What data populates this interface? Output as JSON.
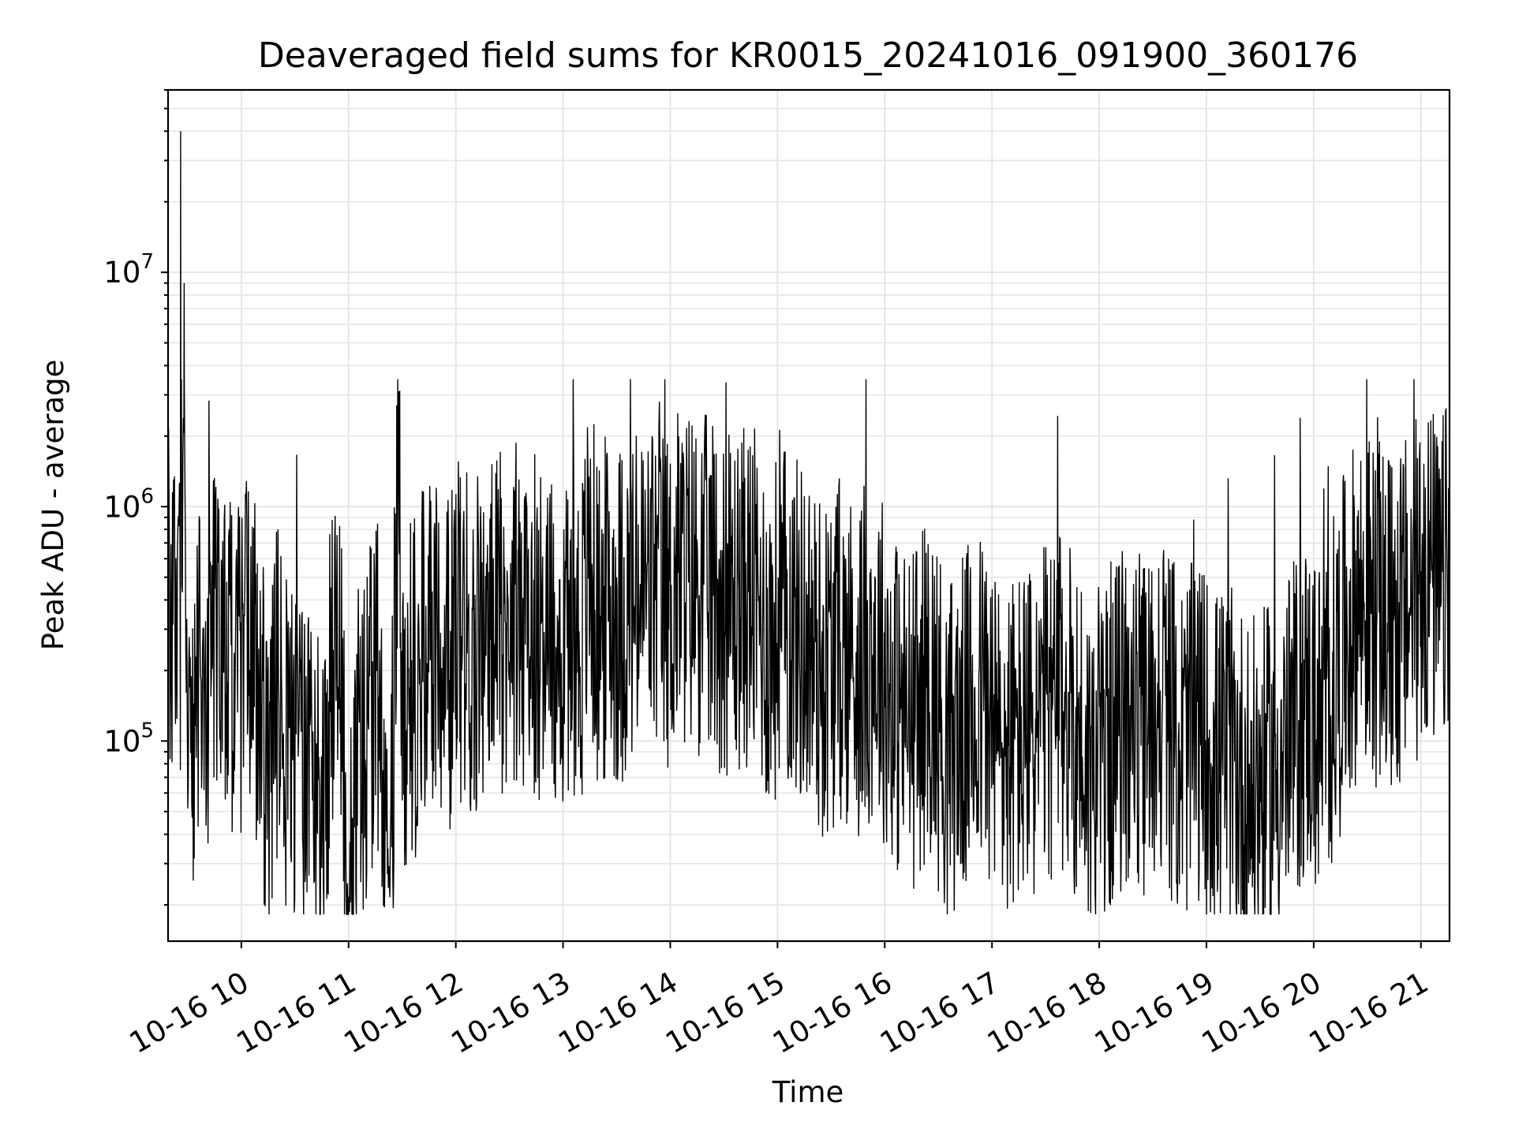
{
  "chart_data": {
    "type": "line",
    "title": "Deaveraged field sums for KR0015_20241016_091900_360176",
    "xlabel": "Time",
    "ylabel": "Peak ADU - average",
    "yscale": "log",
    "ylim": [
      14000,
      60000000
    ],
    "xlim": [
      "2024-10-16 09:19:00",
      "2024-10-16 21:16:00"
    ],
    "grid": true,
    "line_color": "#000000",
    "grid_color": "#e6e6e6",
    "x_ticks": [
      {
        "time": "2024-10-16 10:00",
        "label": "10-16 10"
      },
      {
        "time": "2024-10-16 11:00",
        "label": "10-16 11"
      },
      {
        "time": "2024-10-16 12:00",
        "label": "10-16 12"
      },
      {
        "time": "2024-10-16 13:00",
        "label": "10-16 13"
      },
      {
        "time": "2024-10-16 14:00",
        "label": "10-16 14"
      },
      {
        "time": "2024-10-16 15:00",
        "label": "10-16 15"
      },
      {
        "time": "2024-10-16 16:00",
        "label": "10-16 16"
      },
      {
        "time": "2024-10-16 17:00",
        "label": "10-16 17"
      },
      {
        "time": "2024-10-16 18:00",
        "label": "10-16 18"
      },
      {
        "time": "2024-10-16 19:00",
        "label": "10-16 19"
      },
      {
        "time": "2024-10-16 20:00",
        "label": "10-16 20"
      },
      {
        "time": "2024-10-16 21:00",
        "label": "10-16 21"
      }
    ],
    "y_ticks": [
      {
        "value": 100000,
        "base": "10",
        "exp": "5"
      },
      {
        "value": 1000000,
        "base": "10",
        "exp": "6"
      },
      {
        "value": 10000000,
        "base": "10",
        "exp": "7"
      }
    ],
    "series": [
      {
        "x": [
          "2024-10-16 09:19",
          "2024-10-16 09:21",
          "2024-10-16 09:24",
          "2024-10-16 09:25",
          "2024-10-16 09:26",
          "2024-10-16 09:26",
          "2024-10-16 09:27",
          "2024-10-16 09:28",
          "2024-10-16 09:30",
          "2024-10-16 09:33",
          "2024-10-16 09:36",
          "2024-10-16 09:40",
          "2024-10-16 09:45",
          "2024-10-16 09:50",
          "2024-10-16 09:55",
          "2024-10-16 10:00",
          "2024-10-16 10:05",
          "2024-10-16 10:10",
          "2024-10-16 10:15",
          "2024-10-16 10:20",
          "2024-10-16 10:25",
          "2024-10-16 10:30",
          "2024-10-16 10:35",
          "2024-10-16 10:40",
          "2024-10-16 10:45",
          "2024-10-16 10:50",
          "2024-10-16 10:55",
          "2024-10-16 11:00",
          "2024-10-16 11:05",
          "2024-10-16 11:10",
          "2024-10-16 11:15",
          "2024-10-16 11:20",
          "2024-10-16 11:25",
          "2024-10-16 11:28",
          "2024-10-16 11:30",
          "2024-10-16 11:35",
          "2024-10-16 11:40",
          "2024-10-16 11:45",
          "2024-10-16 11:50",
          "2024-10-16 11:55",
          "2024-10-16 12:00",
          "2024-10-16 12:10",
          "2024-10-16 12:20",
          "2024-10-16 12:30",
          "2024-10-16 12:40",
          "2024-10-16 12:50",
          "2024-10-16 13:00",
          "2024-10-16 13:05",
          "2024-10-16 13:10",
          "2024-10-16 13:15",
          "2024-10-16 13:20",
          "2024-10-16 13:25",
          "2024-10-16 13:30",
          "2024-10-16 13:40",
          "2024-10-16 13:50",
          "2024-10-16 14:00",
          "2024-10-16 14:05",
          "2024-10-16 14:15",
          "2024-10-16 14:25",
          "2024-10-16 14:35",
          "2024-10-16 14:45",
          "2024-10-16 14:55",
          "2024-10-16 15:05",
          "2024-10-16 15:15",
          "2024-10-16 15:25",
          "2024-10-16 15:35",
          "2024-10-16 15:45",
          "2024-10-16 15:55",
          "2024-10-16 16:05",
          "2024-10-16 16:15",
          "2024-10-16 16:25",
          "2024-10-16 16:35",
          "2024-10-16 16:45",
          "2024-10-16 16:55",
          "2024-10-16 17:05",
          "2024-10-16 17:15",
          "2024-10-16 17:25",
          "2024-10-16 17:35",
          "2024-10-16 17:45",
          "2024-10-16 17:55",
          "2024-10-16 18:05",
          "2024-10-16 18:15",
          "2024-10-16 18:25",
          "2024-10-16 18:35",
          "2024-10-16 18:45",
          "2024-10-16 18:55",
          "2024-10-16 19:05",
          "2024-10-16 19:15",
          "2024-10-16 19:25",
          "2024-10-16 19:35",
          "2024-10-16 19:45",
          "2024-10-16 19:55",
          "2024-10-16 20:05",
          "2024-10-16 20:15",
          "2024-10-16 20:25",
          "2024-10-16 20:35",
          "2024-10-16 20:45",
          "2024-10-16 20:55",
          "2024-10-16 21:05",
          "2024-10-16 21:10",
          "2024-10-16 21:16"
        ],
        "values": [
          560000,
          300000,
          700000,
          250000,
          420000,
          40000000,
          190000,
          9000000,
          85000,
          100000,
          200000,
          130000,
          350000,
          300000,
          180000,
          200000,
          280000,
          170000,
          60000,
          150000,
          110000,
          90000,
          60000,
          120000,
          45000,
          160000,
          200000,
          30000,
          90000,
          110000,
          180000,
          100000,
          90000,
          3100000,
          120000,
          160000,
          200000,
          260000,
          330000,
          180000,
          300000,
          260000,
          300000,
          350000,
          330000,
          300000,
          250000,
          350000,
          250000,
          600000,
          280000,
          400000,
          350000,
          380000,
          460000,
          380000,
          520000,
          480000,
          420000,
          380000,
          430000,
          270000,
          350000,
          280000,
          200000,
          250000,
          210000,
          260000,
          150000,
          120000,
          180000,
          90000,
          120000,
          150000,
          90000,
          100000,
          110000,
          140000,
          130000,
          75000,
          100000,
          130000,
          110000,
          160000,
          90000,
          110000,
          85000,
          80000,
          60000,
          70000,
          90000,
          140000,
          110000,
          220000,
          400000,
          350000,
          300000,
          400000,
          550000,
          380000,
          600000
        ]
      }
    ]
  }
}
